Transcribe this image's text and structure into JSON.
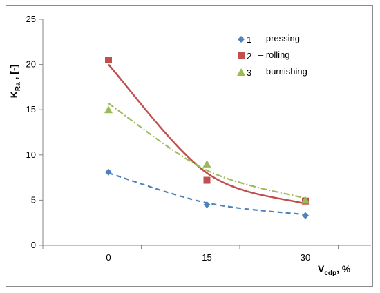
{
  "chart_data": {
    "type": "scatter",
    "x": [
      0,
      15,
      30
    ],
    "xticks": [
      "0",
      "15",
      "30"
    ],
    "xlim": [
      -10,
      40
    ],
    "yticks": [
      "0",
      "5",
      "10",
      "15",
      "20",
      "25"
    ],
    "ylim": [
      0,
      25
    ],
    "xlabel": {
      "main": "V",
      "sub": "cdp",
      "suffix": ", %"
    },
    "ylabel": {
      "main": "K",
      "sub": "Ra",
      "suffix": " , [-]"
    },
    "grid": false,
    "legend_position": "top-right",
    "series": [
      {
        "name": "1",
        "label": "– pressing",
        "marker": "diamond",
        "color": "#4f81bd",
        "trend_style": "dashed",
        "values": [
          8.1,
          4.5,
          3.3
        ],
        "trend": [
          8.0,
          4.7,
          3.4
        ]
      },
      {
        "name": "2",
        "label": "– rolling",
        "marker": "square",
        "color": "#c0504d",
        "trend_style": "solid",
        "values": [
          20.5,
          7.2,
          4.9
        ],
        "trend": [
          20.0,
          8.0,
          4.6
        ]
      },
      {
        "name": "3",
        "label": "– burnishing",
        "marker": "triangle",
        "color": "#9bbb59",
        "trend_style": "dash-dot",
        "values": [
          15.0,
          9.0,
          5.0
        ],
        "trend": [
          15.7,
          8.3,
          5.2
        ]
      }
    ]
  }
}
